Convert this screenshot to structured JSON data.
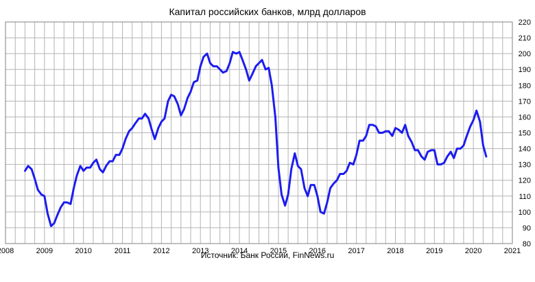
{
  "chart_data": {
    "type": "line",
    "title": "Капитал российских банков, млрд долларов",
    "source": "Источник: Банк России, FinNews.ru",
    "xlim": [
      2008,
      2021
    ],
    "ylim": [
      80,
      220
    ],
    "x_ticks": [
      "2008",
      "2009",
      "2010",
      "2011",
      "2012",
      "2013",
      "2014",
      "2015",
      "2016",
      "2017",
      "2018",
      "2019",
      "2020",
      "2021"
    ],
    "y_ticks": [
      "80",
      "90",
      "100",
      "110",
      "120",
      "130",
      "140",
      "150",
      "160",
      "170",
      "180",
      "190",
      "200",
      "210",
      "220"
    ],
    "y_axis_side": "right",
    "grid": true,
    "series_color": "#1c1cf0",
    "series": [
      {
        "x": [
          2008.5,
          2008.58,
          2008.67,
          2008.75,
          2008.83,
          2008.92,
          2009.0,
          2009.08,
          2009.17,
          2009.25,
          2009.33,
          2009.42,
          2009.5,
          2009.58,
          2009.67,
          2009.75,
          2009.83,
          2009.92,
          2010.0,
          2010.08,
          2010.17,
          2010.25,
          2010.33,
          2010.42,
          2010.5,
          2010.58,
          2010.67,
          2010.75,
          2010.83,
          2010.92,
          2011.0,
          2011.08,
          2011.17,
          2011.25,
          2011.33,
          2011.42,
          2011.5,
          2011.58,
          2011.67,
          2011.75,
          2011.83,
          2011.92,
          2012.0,
          2012.08,
          2012.17,
          2012.25,
          2012.33,
          2012.42,
          2012.5,
          2012.58,
          2012.67,
          2012.75,
          2012.83,
          2012.92,
          2013.0,
          2013.08,
          2013.17,
          2013.25,
          2013.33,
          2013.42,
          2013.5,
          2013.58,
          2013.67,
          2013.75,
          2013.83,
          2013.92,
          2014.0,
          2014.08,
          2014.17,
          2014.25,
          2014.33,
          2014.42,
          2014.5,
          2014.58,
          2014.67,
          2014.75,
          2014.83,
          2014.92,
          2015.0,
          2015.08,
          2015.17,
          2015.25,
          2015.33,
          2015.42,
          2015.5,
          2015.58,
          2015.67,
          2015.75,
          2015.83,
          2015.92,
          2016.0,
          2016.08,
          2016.17,
          2016.25,
          2016.33,
          2016.42,
          2016.5,
          2016.58,
          2016.67,
          2016.75,
          2016.83,
          2016.92,
          2017.0,
          2017.08,
          2017.17,
          2017.25,
          2017.33,
          2017.42,
          2017.5,
          2017.58,
          2017.67,
          2017.75,
          2017.83,
          2017.92,
          2018.0,
          2018.08,
          2018.17,
          2018.25,
          2018.33,
          2018.42,
          2018.5,
          2018.58,
          2018.67,
          2018.75,
          2018.83,
          2018.92,
          2019.0,
          2019.08,
          2019.17,
          2019.25,
          2019.33,
          2019.42,
          2019.5,
          2019.58,
          2019.67,
          2019.75,
          2019.83,
          2019.92,
          2020.0,
          2020.08,
          2020.17,
          2020.25,
          2020.33
        ],
        "y": [
          126,
          129,
          127,
          121,
          114,
          111,
          110,
          99,
          91,
          93,
          98,
          103,
          106,
          106,
          105,
          115,
          123,
          129,
          126,
          128,
          128,
          131,
          133,
          127,
          125,
          129,
          132,
          132,
          136,
          136,
          140,
          146,
          151,
          153,
          156,
          159,
          159,
          162,
          159,
          152,
          146,
          153,
          157,
          159,
          170,
          174,
          173,
          168,
          161,
          165,
          172,
          176,
          182,
          183,
          192,
          198,
          200,
          194,
          192,
          192,
          190,
          188,
          189,
          194,
          201,
          200,
          201,
          196,
          190,
          183,
          187,
          192,
          194,
          196,
          190,
          191,
          180,
          160,
          128,
          111,
          104,
          111,
          127,
          137,
          129,
          127,
          115,
          110,
          117,
          117,
          110,
          100,
          99,
          106,
          115,
          118,
          120,
          124,
          124,
          126,
          131,
          130,
          136,
          145,
          145,
          148,
          155,
          155,
          154,
          150,
          150,
          151,
          151,
          148,
          153,
          152,
          150,
          155,
          148,
          144,
          139,
          139,
          135,
          133,
          138,
          139,
          139,
          130,
          130,
          131,
          135,
          138,
          134,
          140,
          140,
          142,
          148,
          154,
          158,
          164,
          157,
          142,
          135
        ]
      }
    ]
  }
}
